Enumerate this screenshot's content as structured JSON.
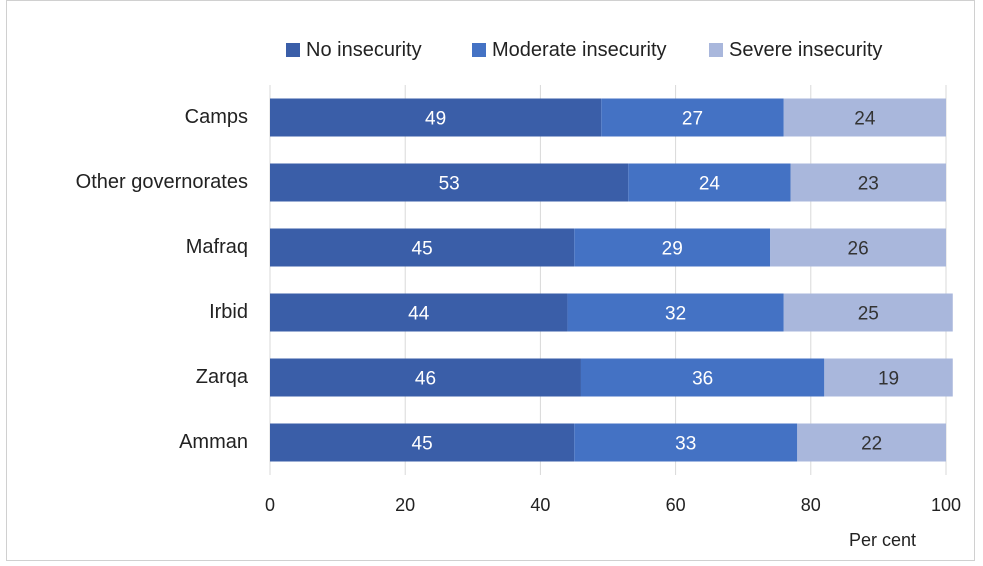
{
  "chart_data": {
    "type": "bar",
    "orientation": "horizontal",
    "stacked": true,
    "categories": [
      "Camps",
      "Other governorates",
      "Mafraq",
      "Irbid",
      "Zarqa",
      "Amman"
    ],
    "series": [
      {
        "name": "No insecurity",
        "color": "#3a5ea8",
        "values": [
          49,
          53,
          45,
          44,
          46,
          45
        ]
      },
      {
        "name": "Moderate insecurity",
        "color": "#4472c4",
        "values": [
          27,
          24,
          29,
          32,
          36,
          33
        ]
      },
      {
        "name": "Severe insecurity",
        "color": "#a9b7dc",
        "values": [
          24,
          23,
          26,
          25,
          19,
          22
        ]
      }
    ],
    "xlabel": "Per cent",
    "xlim": [
      0,
      100
    ],
    "xticks": [
      0,
      20,
      40,
      60,
      80,
      100
    ],
    "grid": true,
    "legend": "top",
    "label_colors": [
      "#ffffff",
      "#ffffff",
      "#333333"
    ]
  }
}
